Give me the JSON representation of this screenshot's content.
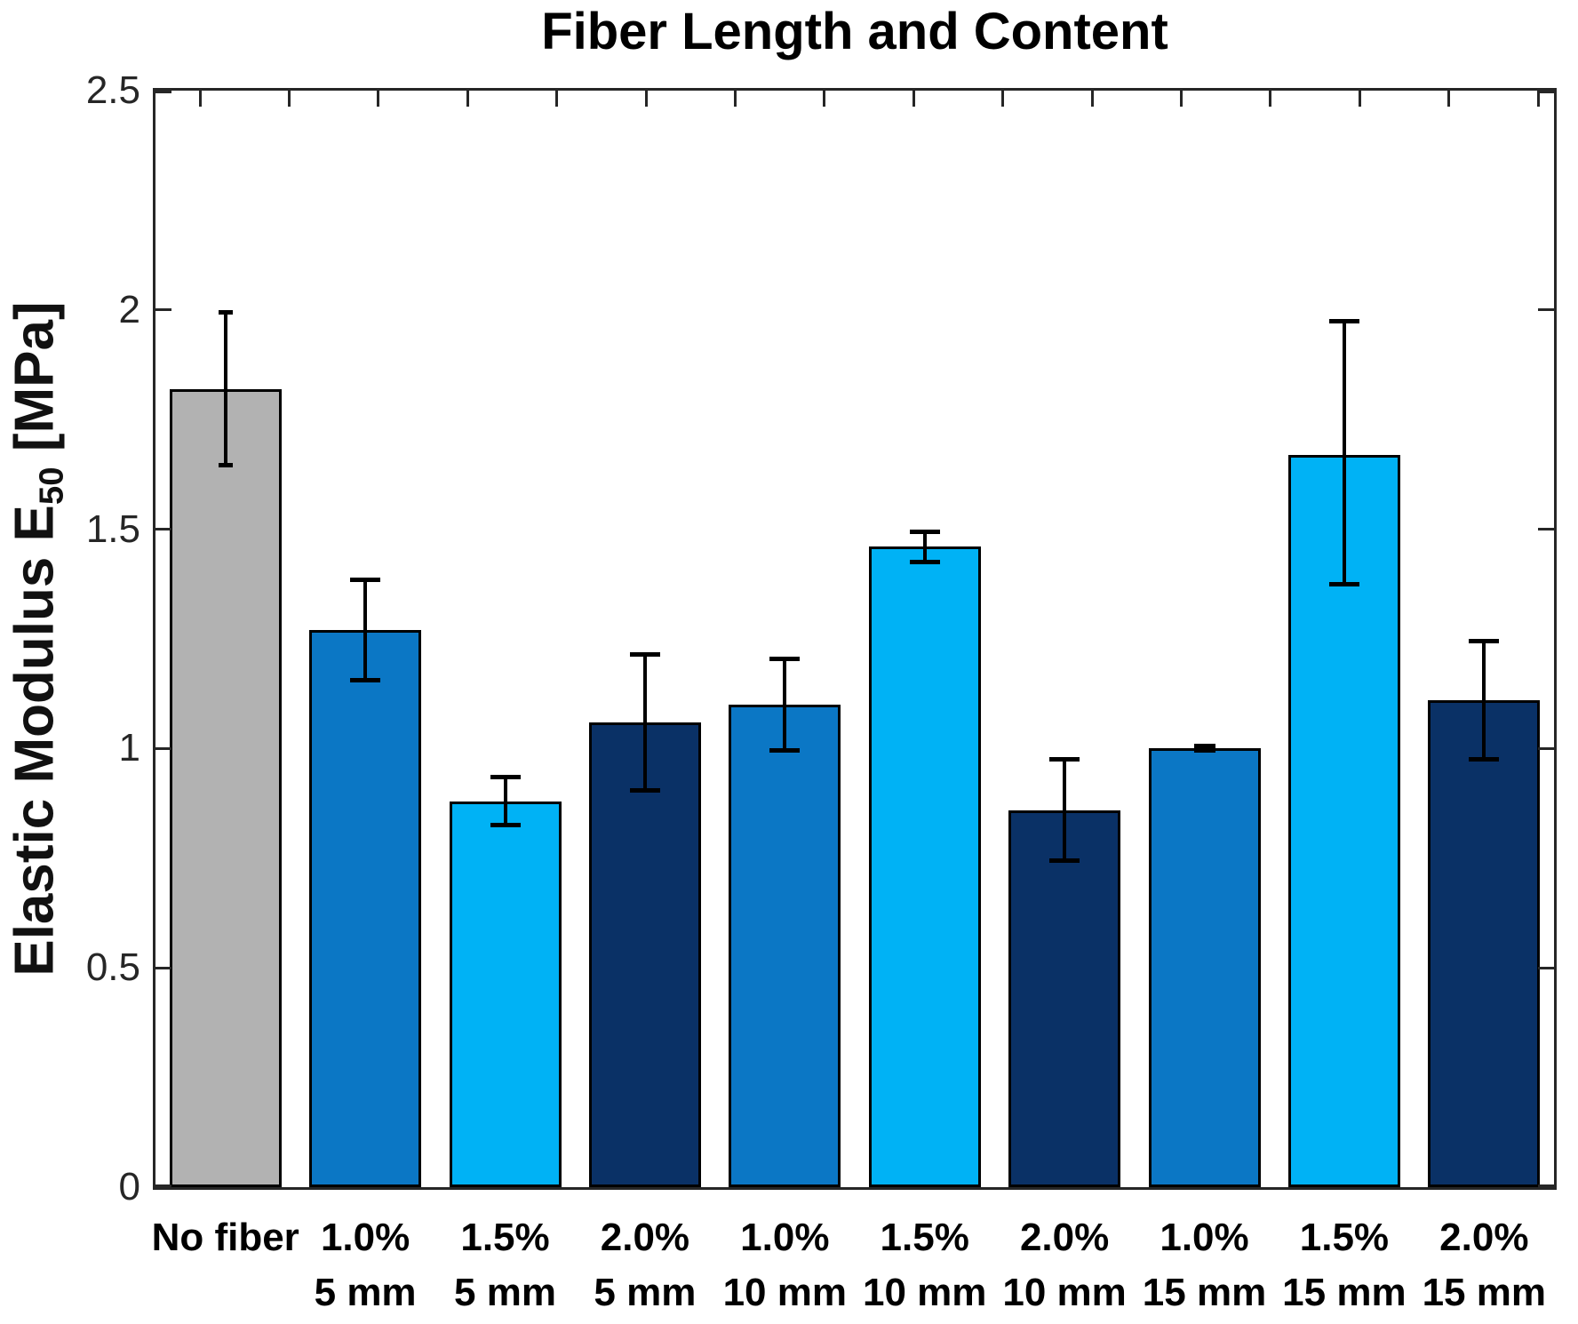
{
  "chart_data": {
    "type": "bar",
    "title": "Fiber Length and Content",
    "ylabel": {
      "prefix": "Elastic Modulus E",
      "subscript": "50",
      "suffix": " [MPa]"
    },
    "xlabel": "",
    "ylim": [
      0,
      2.5
    ],
    "y_ticks": [
      0,
      0.5,
      1,
      1.5,
      2,
      2.5
    ],
    "y_tick_labels": [
      "0",
      "0.5",
      "1",
      "1.5",
      "2",
      "2.5"
    ],
    "grid": "off",
    "legend": "none",
    "categories": [
      {
        "line1": "No fiber",
        "line2": ""
      },
      {
        "line1": "1.0%",
        "line2": "5 mm"
      },
      {
        "line1": "1.5%",
        "line2": "5 mm"
      },
      {
        "line1": "2.0%",
        "line2": "5 mm"
      },
      {
        "line1": "1.0%",
        "line2": "10 mm"
      },
      {
        "line1": "1.5%",
        "line2": "10 mm"
      },
      {
        "line1": "2.0%",
        "line2": "10 mm"
      },
      {
        "line1": "1.0%",
        "line2": "15 mm"
      },
      {
        "line1": "1.5%",
        "line2": "15 mm"
      },
      {
        "line1": "2.0%",
        "line2": "15 mm"
      }
    ],
    "values": [
      1.82,
      1.27,
      0.88,
      1.06,
      1.1,
      1.46,
      0.86,
      1.0,
      1.67,
      1.11
    ],
    "error_low": [
      1.64,
      1.15,
      0.82,
      0.9,
      0.99,
      1.42,
      0.74,
      0.99,
      1.37,
      0.97
    ],
    "error_high": [
      2.0,
      1.39,
      0.94,
      1.22,
      1.21,
      1.5,
      0.98,
      1.01,
      1.98,
      1.25
    ],
    "error_cap_widths": [
      16,
      34,
      34,
      34,
      34,
      34,
      34,
      24,
      34,
      34
    ],
    "bar_colors": [
      "#b2b2b2",
      "#0b77c5",
      "#00b2f5",
      "#0a3166",
      "#0b77c5",
      "#00b2f5",
      "#0a3166",
      "#0b77c5",
      "#00b2f5",
      "#0a3166"
    ],
    "palette": {
      "no_fiber_gray": "#b2b2b2",
      "content_1_0_blue": "#0b77c5",
      "content_1_5_light_blue": "#00b2f5",
      "content_2_0_navy": "#0a3166"
    },
    "axis_color": "#262626",
    "bar_edge_color": "#000000",
    "error_bar_color": "#000000",
    "background_color": "#ffffff"
  }
}
